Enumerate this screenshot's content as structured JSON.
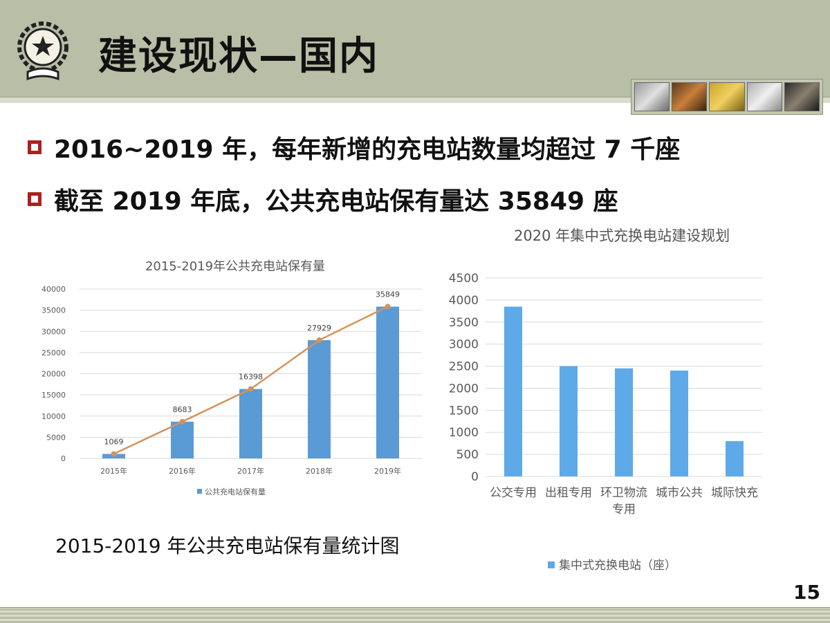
{
  "slide": {
    "title": "建设现状—国内",
    "bullets": [
      "2016~2019 年，每年新增的充电站数量均超过 7 千座",
      "截至 2019 年底，公共充电站保有量达 35849 座"
    ],
    "right_chart_subtitle": "2020 年集中式充换电站建设规划",
    "left_chart_caption": "2015-2019 年公共充电站保有量统计图",
    "page_number": "15"
  },
  "chart_data": [
    {
      "type": "bar",
      "title": "2015-2019年公共充电站保有量",
      "categories": [
        "2015年",
        "2016年",
        "2017年",
        "2018年",
        "2019年"
      ],
      "series": [
        {
          "name": "公共充电站保有量",
          "values": [
            1069,
            8683,
            16398,
            27929,
            35849
          ]
        }
      ],
      "data_labels": [
        "1069",
        "8683",
        "16398",
        "27929",
        "35849"
      ],
      "overlay_line": true,
      "ylim": [
        0,
        40000
      ],
      "yticks": [
        0,
        5000,
        10000,
        15000,
        20000,
        25000,
        30000,
        35000,
        40000
      ],
      "grid": true,
      "legend": "bottom",
      "colors": {
        "bar": "#5b9bd5",
        "line": "#d4935a"
      }
    },
    {
      "type": "bar",
      "categories": [
        "公交专用",
        "出租专用",
        "环卫物流专用",
        "城市公共",
        "城际快充"
      ],
      "series": [
        {
          "name": "集中式充换电站（座）",
          "values": [
            3850,
            2500,
            2450,
            2400,
            800
          ]
        }
      ],
      "ylim": [
        0,
        4500
      ],
      "yticks": [
        0,
        500,
        1000,
        1500,
        2000,
        2500,
        3000,
        3500,
        4000,
        4500
      ],
      "grid": true,
      "legend": "bottom",
      "colors": {
        "bar": "#5ea9e8"
      }
    }
  ]
}
